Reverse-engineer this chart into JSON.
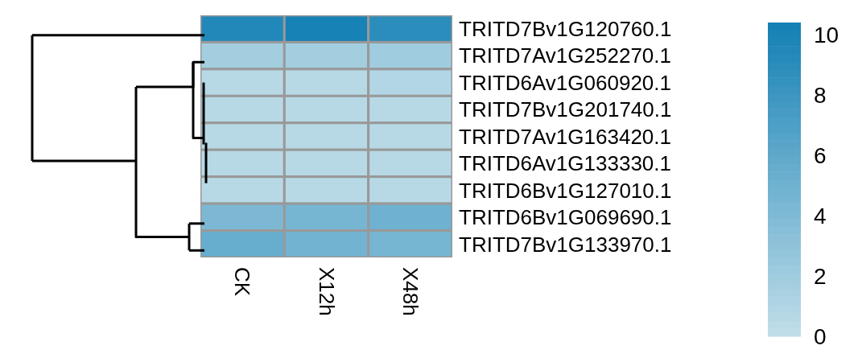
{
  "chart_data": {
    "type": "heatmap",
    "categories": [
      "CK",
      "X12h",
      "X48h"
    ],
    "y_categories": [
      "TRITD7Bv1G120760.1",
      "TRITD7Av1G252270.1",
      "TRITD6Av1G060920.1",
      "TRITD7Bv1G201740.1",
      "TRITD7Av1G163420.1",
      "TRITD6Av1G133330.1",
      "TRITD6Bv1G127010.1",
      "TRITD6Bv1G069690.1",
      "TRITD7Bv1G133970.1"
    ],
    "cells": [
      [
        9.5,
        10.2,
        9.0
      ],
      [
        1.8,
        1.8,
        2.0
      ],
      [
        0.6,
        0.6,
        0.9
      ],
      [
        0.6,
        0.6,
        0.6
      ],
      [
        0.6,
        0.6,
        0.6
      ],
      [
        0.6,
        0.6,
        0.6
      ],
      [
        0.6,
        0.6,
        0.6
      ],
      [
        4.2,
        4.5,
        5.0
      ],
      [
        5.5,
        4.8,
        4.5
      ]
    ],
    "clim": [
      0,
      10.4
    ],
    "cticks": [
      0,
      2,
      4,
      6,
      8,
      10
    ]
  }
}
